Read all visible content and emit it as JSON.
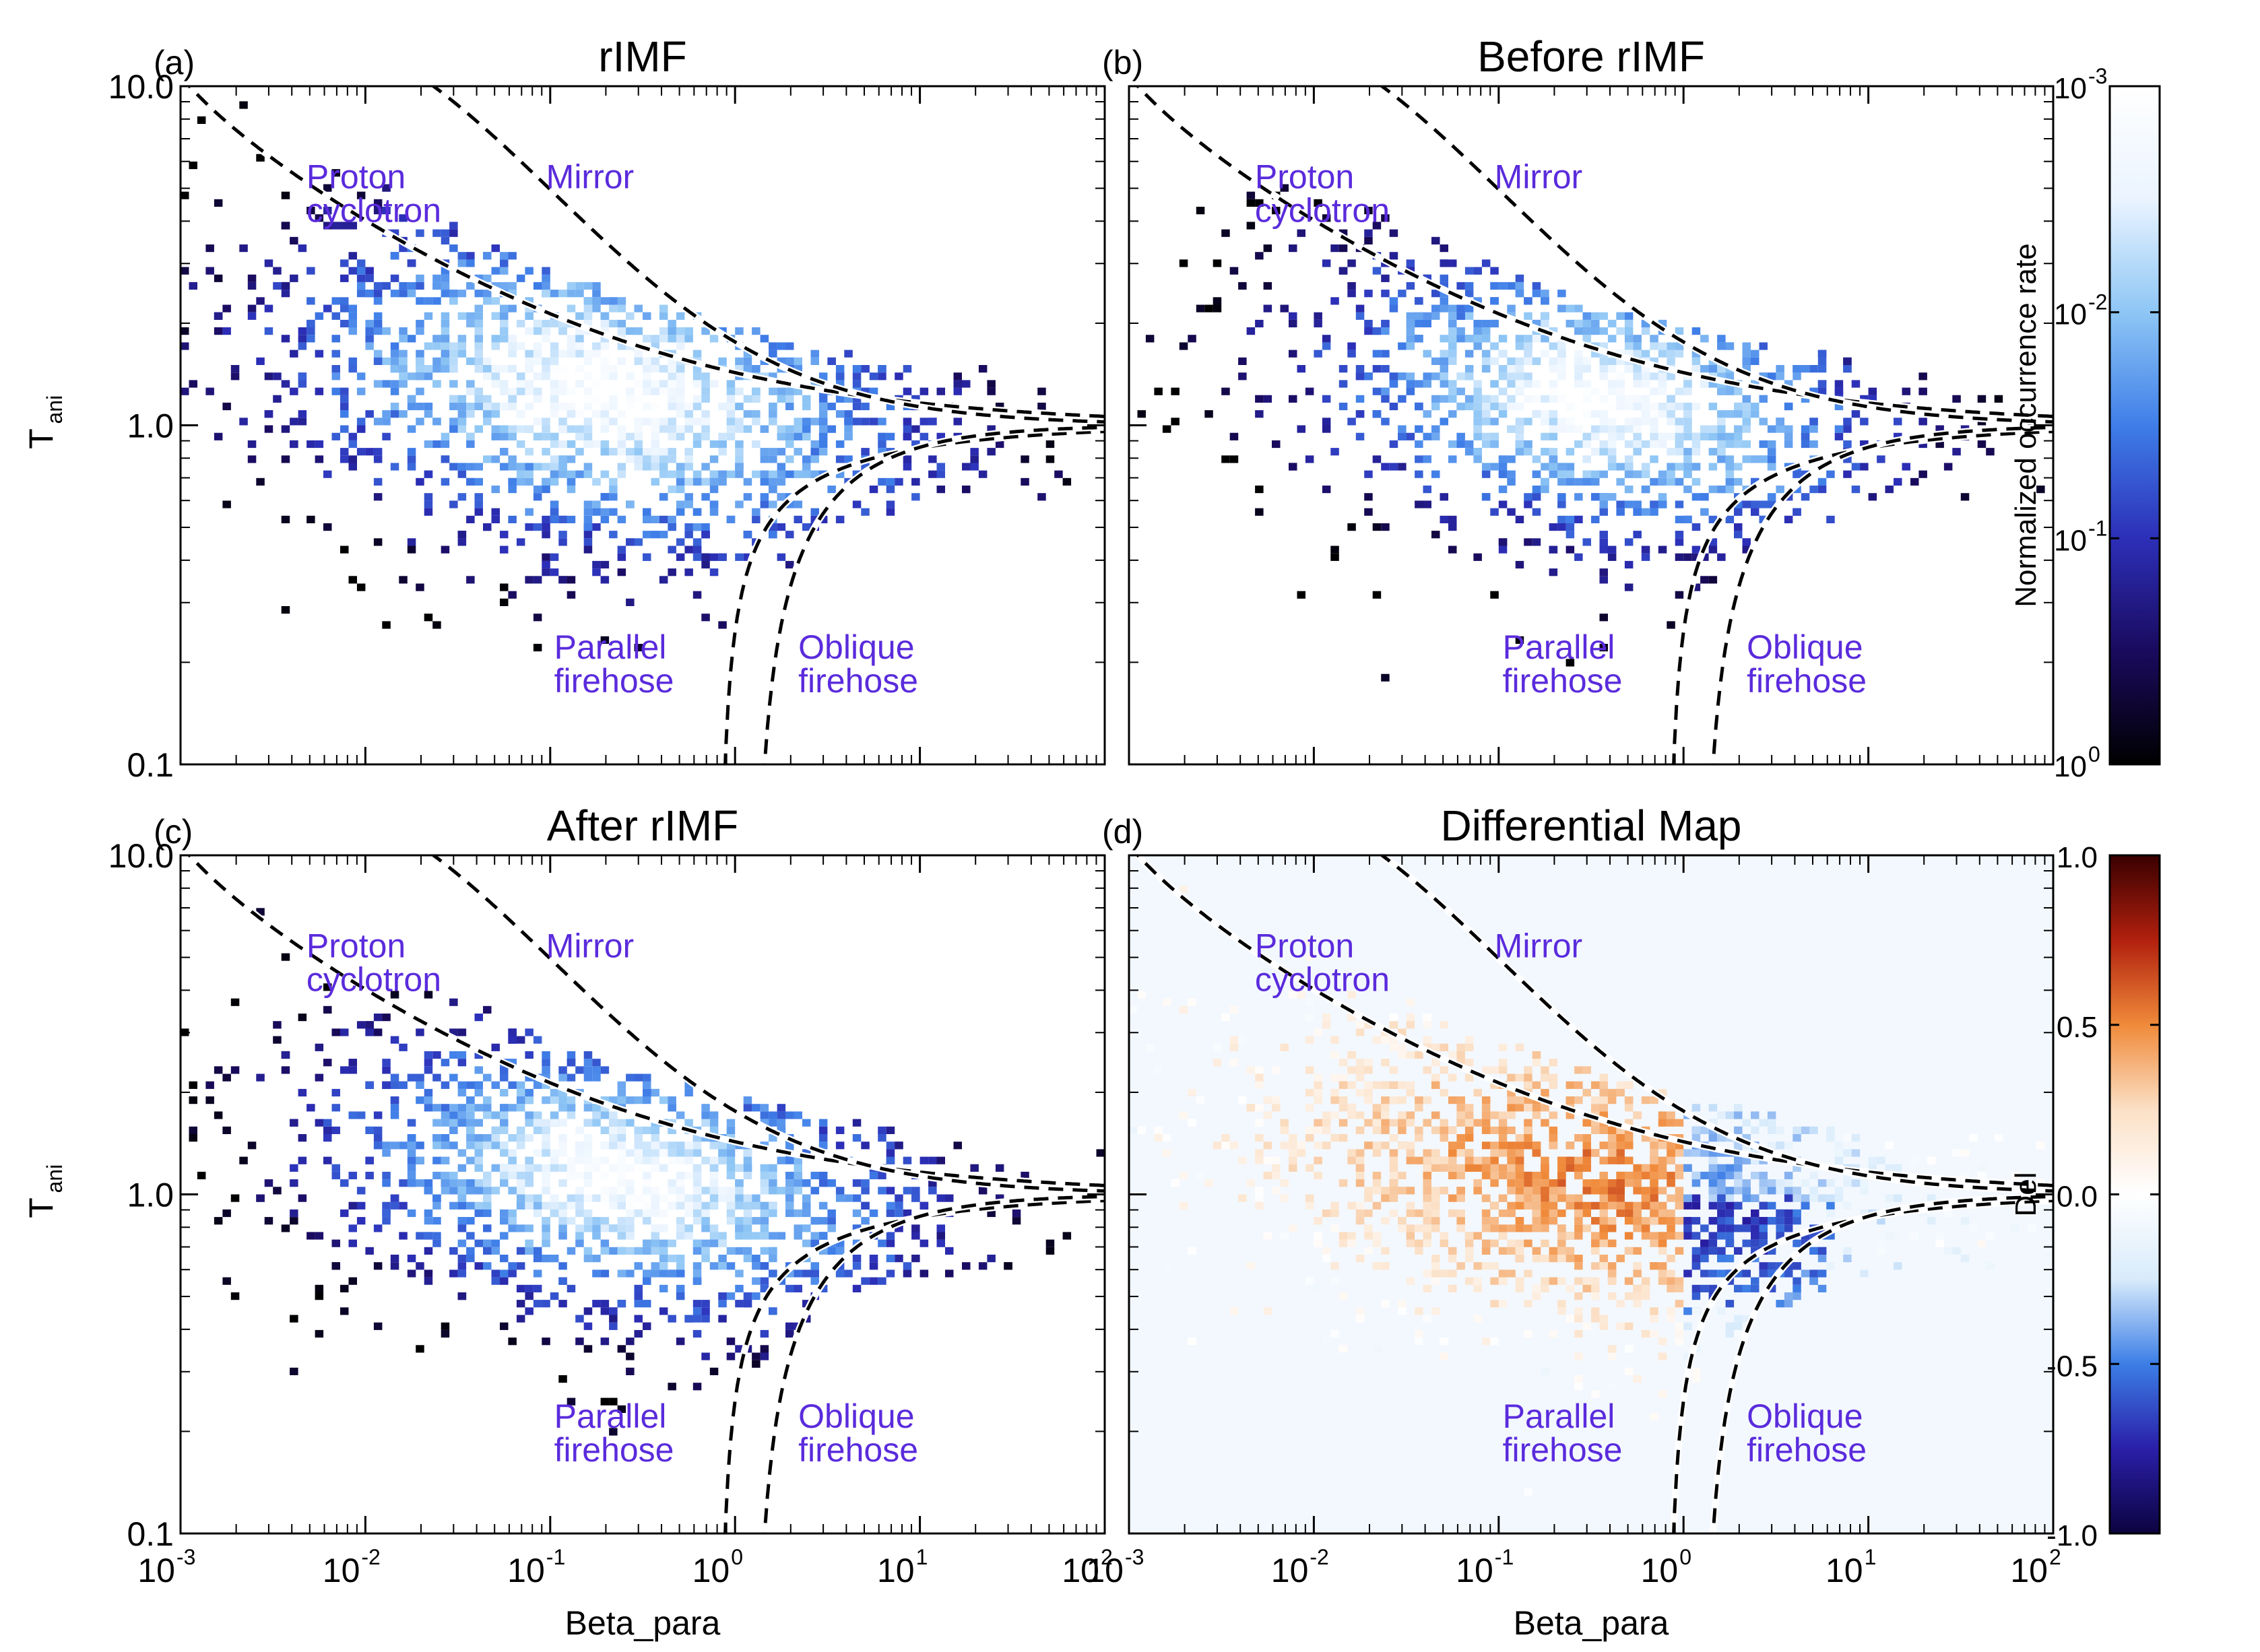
{
  "chart_data": {
    "type": "heatmap",
    "panels": [
      {
        "label": "(a)",
        "title": "rIMF",
        "xlabel": "",
        "ylabel": "T",
        "ylabel_sub": "ani",
        "map": "density",
        "center": [
          -0.7,
          0.1
        ],
        "spread": [
          1.05,
          0.28
        ],
        "tilt": -0.32,
        "count": 1800,
        "seed": 11
      },
      {
        "label": "(b)",
        "title": "Before rIMF",
        "xlabel": "",
        "ylabel": "",
        "ylabel_sub": "",
        "map": "density",
        "center": [
          -0.45,
          0.08
        ],
        "spread": [
          0.9,
          0.25
        ],
        "tilt": -0.3,
        "count": 1400,
        "seed": 23
      },
      {
        "label": "(c)",
        "title": "After rIMF",
        "xlabel": "Beta_para",
        "ylabel": "T",
        "ylabel_sub": "ani",
        "map": "density",
        "center": [
          -0.6,
          0.05
        ],
        "spread": [
          0.95,
          0.24
        ],
        "tilt": -0.32,
        "count": 1600,
        "seed": 37
      },
      {
        "label": "(d)",
        "title": "Differential Map",
        "xlabel": "Beta_para",
        "ylabel": "",
        "ylabel_sub": "",
        "map": "diff",
        "center": [
          -0.5,
          0.05
        ],
        "spread": [
          1.0,
          0.25
        ],
        "tilt": -0.3,
        "count": 1900,
        "seed": 53
      }
    ],
    "x_axis": {
      "scale": "log",
      "range": [
        0.001,
        100
      ],
      "tick_values": [
        0.001,
        0.01,
        0.1,
        1,
        10,
        100
      ],
      "tick_base": "10",
      "tick_exponents": [
        "-3",
        "-2",
        "-1",
        "0",
        "1",
        "2"
      ]
    },
    "y_axis": {
      "scale": "log",
      "range": [
        0.1,
        10
      ],
      "tick_values": [
        0.1,
        1.0,
        10.0
      ],
      "tick_labels": [
        "0.1",
        "1.0",
        "10.0"
      ]
    },
    "thresholds": [
      {
        "name": "Proton cyclotron",
        "a": 0.43,
        "b": 0.42,
        "b0": 0.0004
      },
      {
        "name": "Mirror",
        "a": 0.77,
        "b": 0.76,
        "b0": -0.016
      },
      {
        "name": "Parallel firehose",
        "a": -0.47,
        "b": 0.53,
        "b0": 0.59
      },
      {
        "name": "Oblique firehose",
        "a": -1.4,
        "b": 1.0,
        "b0": -0.11
      }
    ],
    "region_labels": [
      {
        "lines": [
          "Proton",
          "cyclotron"
        ],
        "beta": 0.0048,
        "tani": 5.0
      },
      {
        "lines": [
          "Mirror"
        ],
        "beta": 0.095,
        "tani": 5.0
      },
      {
        "lines": [
          "Parallel",
          "firehose"
        ],
        "beta": 0.105,
        "tani": 0.205
      },
      {
        "lines": [
          "Oblique",
          "firehose"
        ],
        "beta": 2.2,
        "tani": 0.205
      }
    ],
    "colorbars": [
      {
        "name": "density",
        "label": "Normalized occurrence rate",
        "scale": "log",
        "range": [
          1,
          0.001
        ],
        "tick_values": [
          0.001,
          0.01,
          0.1,
          1
        ],
        "tick_base": "10",
        "tick_exponents": [
          "-3",
          "-2",
          "-1",
          "0"
        ],
        "colors": [
          "#000000",
          "#1a0a5e",
          "#2c2fb8",
          "#3f7ee8",
          "#8ec6f5",
          "#eaf4ff",
          "#ffffff"
        ]
      },
      {
        "name": "diff",
        "label": "Del",
        "scale": "linear",
        "range": [
          -1.0,
          1.0
        ],
        "tick_values": [
          -1.0,
          -0.5,
          0.0,
          0.5,
          1.0
        ],
        "tick_labels": [
          "-1.0",
          "-0.5",
          "0.0",
          "0.5",
          "1.0"
        ],
        "colors": [
          "#0c0340",
          "#2a1fa8",
          "#3c7ee6",
          "#d8ebfb",
          "#ffffff",
          "#fbe0c6",
          "#f08a3a",
          "#b1200e",
          "#3a0000"
        ]
      }
    ],
    "annotation_color": "#5a2bdc"
  }
}
